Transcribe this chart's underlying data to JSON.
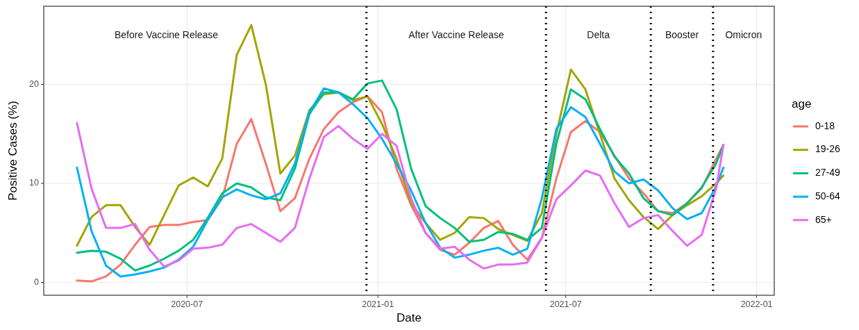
{
  "chart_data": {
    "type": "line",
    "xlabel": "Date",
    "ylabel": "Positive Cases (%)",
    "legend_title": "age",
    "legend": "right",
    "grid": true,
    "line_style": "solid",
    "marker": "none",
    "x": [
      "2020-03-17",
      "2020-03-31",
      "2020-04-14",
      "2020-04-28",
      "2020-05-12",
      "2020-05-26",
      "2020-06-09",
      "2020-06-23",
      "2020-07-07",
      "2020-07-21",
      "2020-08-04",
      "2020-08-18",
      "2020-09-01",
      "2020-09-15",
      "2020-09-29",
      "2020-10-13",
      "2020-10-27",
      "2020-11-10",
      "2020-11-24",
      "2020-12-08",
      "2020-12-22",
      "2021-01-05",
      "2021-01-19",
      "2021-02-02",
      "2021-02-16",
      "2021-03-02",
      "2021-03-16",
      "2021-03-30",
      "2021-04-13",
      "2021-04-27",
      "2021-05-11",
      "2021-05-25",
      "2021-06-08",
      "2021-06-22",
      "2021-07-06",
      "2021-07-20",
      "2021-08-03",
      "2021-08-17",
      "2021-08-31",
      "2021-09-14",
      "2021-09-28",
      "2021-10-12",
      "2021-10-26",
      "2021-11-09",
      "2021-11-23",
      "2021-11-30"
    ],
    "xlim": [
      "2020-02-14",
      "2022-01-18"
    ],
    "xticks": [
      "2020-07",
      "2021-01",
      "2021-07",
      "2022-01"
    ],
    "ylim": [
      -1.3,
      27.9
    ],
    "yticks": [
      0,
      10,
      20
    ],
    "series": [
      {
        "name": "0-18",
        "color": "#f8766d",
        "values": [
          0.2,
          0.1,
          0.6,
          1.8,
          3.8,
          5.6,
          5.8,
          5.8,
          6.1,
          6.3,
          8.5,
          14,
          16.5,
          12,
          7.2,
          8.5,
          12.5,
          15.5,
          17.2,
          18.2,
          18.8,
          17.2,
          11.5,
          7.8,
          5,
          3.3,
          2.8,
          4,
          5.5,
          6.2,
          3.8,
          2.3,
          4.5,
          10.5,
          15.2,
          16.3,
          15.2,
          12.8,
          10.5,
          9,
          7.2,
          7,
          8,
          9.5,
          12.5,
          13.9
        ]
      },
      {
        "name": "19-26",
        "color": "#a3a500",
        "values": [
          3.7,
          6.6,
          7.8,
          7.8,
          5.6,
          3.8,
          6.8,
          9.8,
          10.6,
          9.7,
          12.5,
          23,
          26,
          20,
          11,
          12.8,
          17.4,
          19,
          19.2,
          18.4,
          18.8,
          16,
          12.5,
          8,
          6,
          4.3,
          5,
          6.6,
          6.5,
          5.4,
          4.8,
          4.2,
          7,
          15,
          21.5,
          19.5,
          15,
          10.5,
          8.3,
          6.6,
          5.4,
          6.8,
          7.8,
          8.7,
          10,
          10.8
        ]
      },
      {
        "name": "27-49",
        "color": "#00bf7d",
        "values": [
          3,
          3.2,
          3.1,
          2.4,
          1.2,
          1.7,
          2.4,
          3.2,
          4.3,
          6.5,
          9,
          10,
          9.6,
          8.6,
          8.3,
          11.5,
          17,
          19.2,
          19.2,
          18.5,
          20.1,
          20.4,
          17.5,
          11.5,
          7.7,
          6.5,
          5.5,
          4.1,
          4.3,
          5.1,
          4.9,
          4.3,
          5.5,
          14,
          19.5,
          18.5,
          15.5,
          12.7,
          11,
          8.5,
          7.2,
          6.8,
          8,
          9.6,
          12,
          13.9
        ]
      },
      {
        "name": "50-64",
        "color": "#00b0f6",
        "values": [
          11.6,
          5.2,
          1.7,
          0.6,
          0.8,
          1.1,
          1.5,
          2.3,
          3.6,
          6.3,
          8.6,
          9.4,
          8.8,
          8.4,
          9,
          12,
          17.2,
          19.6,
          19.2,
          18,
          16.6,
          14.5,
          12,
          9.3,
          6,
          3.5,
          2.5,
          2.8,
          3.2,
          3.5,
          2.8,
          3.4,
          8.5,
          15.5,
          17.7,
          16.7,
          14,
          11.2,
          10,
          10.4,
          9.3,
          7.5,
          6.4,
          7,
          9.7,
          11.6
        ]
      },
      {
        "name": "65+",
        "color": "#e76bf3",
        "values": [
          16.1,
          9.5,
          5.5,
          5.5,
          5.9,
          3.3,
          1.6,
          2.2,
          3.4,
          3.5,
          3.8,
          5.5,
          5.9,
          5,
          4.1,
          5.5,
          10.5,
          14.7,
          15.8,
          14.5,
          13.5,
          15,
          13.8,
          8.5,
          5,
          3.4,
          3.6,
          2.3,
          1.4,
          1.8,
          1.8,
          2,
          4.5,
          8.4,
          9.8,
          11.3,
          10.8,
          8,
          5.6,
          6.5,
          6.8,
          5.2,
          3.7,
          4.8,
          9.5,
          13.9
        ]
      }
    ],
    "ref_lines": [
      {
        "axis": "x",
        "value": "2020-12-21",
        "color": "#000000",
        "line_style": "dotted"
      },
      {
        "axis": "x",
        "value": "2021-06-12",
        "color": "#000000",
        "line_style": "dotted"
      },
      {
        "axis": "x",
        "value": "2021-09-21",
        "color": "#000000",
        "line_style": "dotted"
      },
      {
        "axis": "x",
        "value": "2021-11-20",
        "color": "#000000",
        "line_style": "dotted"
      }
    ],
    "annotations": [
      "Before Vaccine Release",
      "After Vaccine Release",
      "Delta",
      "Booster",
      "Omicron"
    ]
  }
}
